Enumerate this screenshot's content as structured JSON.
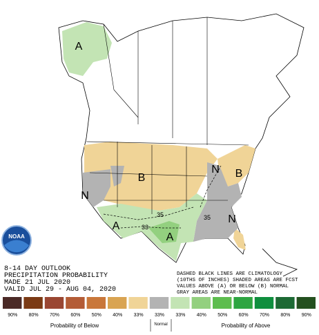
{
  "map": {
    "labels": [
      "A",
      "B",
      "N",
      "A",
      "A",
      "N",
      "B",
      "N"
    ],
    "contours": [
      "35",
      "33",
      "35"
    ]
  },
  "logo": "NOAA",
  "info": [
    "8-14 DAY OUTLOOK",
    "PRECIPITATION PROBABILITY",
    "MADE  21 JUL 2020",
    "VALID  JUL 29 - AUG 04, 2020"
  ],
  "notes": [
    "DASHED BLACK LINES ARE CLIMATOLOGY",
    "(10THS OF INCHES) SHADED AREAS ARE FCST",
    "VALUES ABOVE (A) OR BELOW (B) NORMAL",
    "GRAY AREAS ARE NEAR-NORMAL"
  ],
  "legend": {
    "items": [
      {
        "label": "90%",
        "color": "#4b2a26"
      },
      {
        "label": "80%",
        "color": "#7b3a14"
      },
      {
        "label": "70%",
        "color": "#9a4632"
      },
      {
        "label": "60%",
        "color": "#b45c36"
      },
      {
        "label": "50%",
        "color": "#c9773a"
      },
      {
        "label": "40%",
        "color": "#d9a452"
      },
      {
        "label": "33%",
        "color": "#f0d497"
      },
      {
        "label": "33%",
        "color": "#b3b3b3"
      },
      {
        "label": "33%",
        "color": "#c3e4b4"
      },
      {
        "label": "40%",
        "color": "#93d07f"
      },
      {
        "label": "50%",
        "color": "#5dbd4e"
      },
      {
        "label": "60%",
        "color": "#2ea541"
      },
      {
        "label": "70%",
        "color": "#0f8f3e"
      },
      {
        "label": "80%",
        "color": "#1d6a34"
      },
      {
        "label": "90%",
        "color": "#24501f"
      }
    ],
    "below": "Probability of Below",
    "normal": "Normal",
    "above": "Probability of Above"
  }
}
